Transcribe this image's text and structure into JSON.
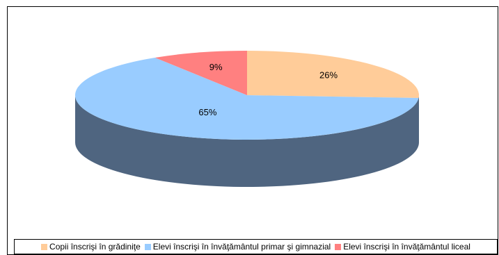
{
  "chart_data": {
    "type": "pie",
    "title": "",
    "style": "3d",
    "legend_position": "bottom",
    "slices": [
      {
        "label": "Copii înscrişi în grădiniţe",
        "value": 26,
        "display": "26%",
        "color": "#FFCC99",
        "side_color": "#4F6580"
      },
      {
        "label": "Elevi înscrişi în învăţământul primar şi gimnazial",
        "value": 65,
        "display": "65%",
        "color": "#99CCFF",
        "side_color": "#4F6580"
      },
      {
        "label": "Elevi înscrişi în învăţământul liceal",
        "value": 9,
        "display": "9%",
        "color": "#FF8080",
        "side_color": "#4F6580"
      }
    ]
  }
}
